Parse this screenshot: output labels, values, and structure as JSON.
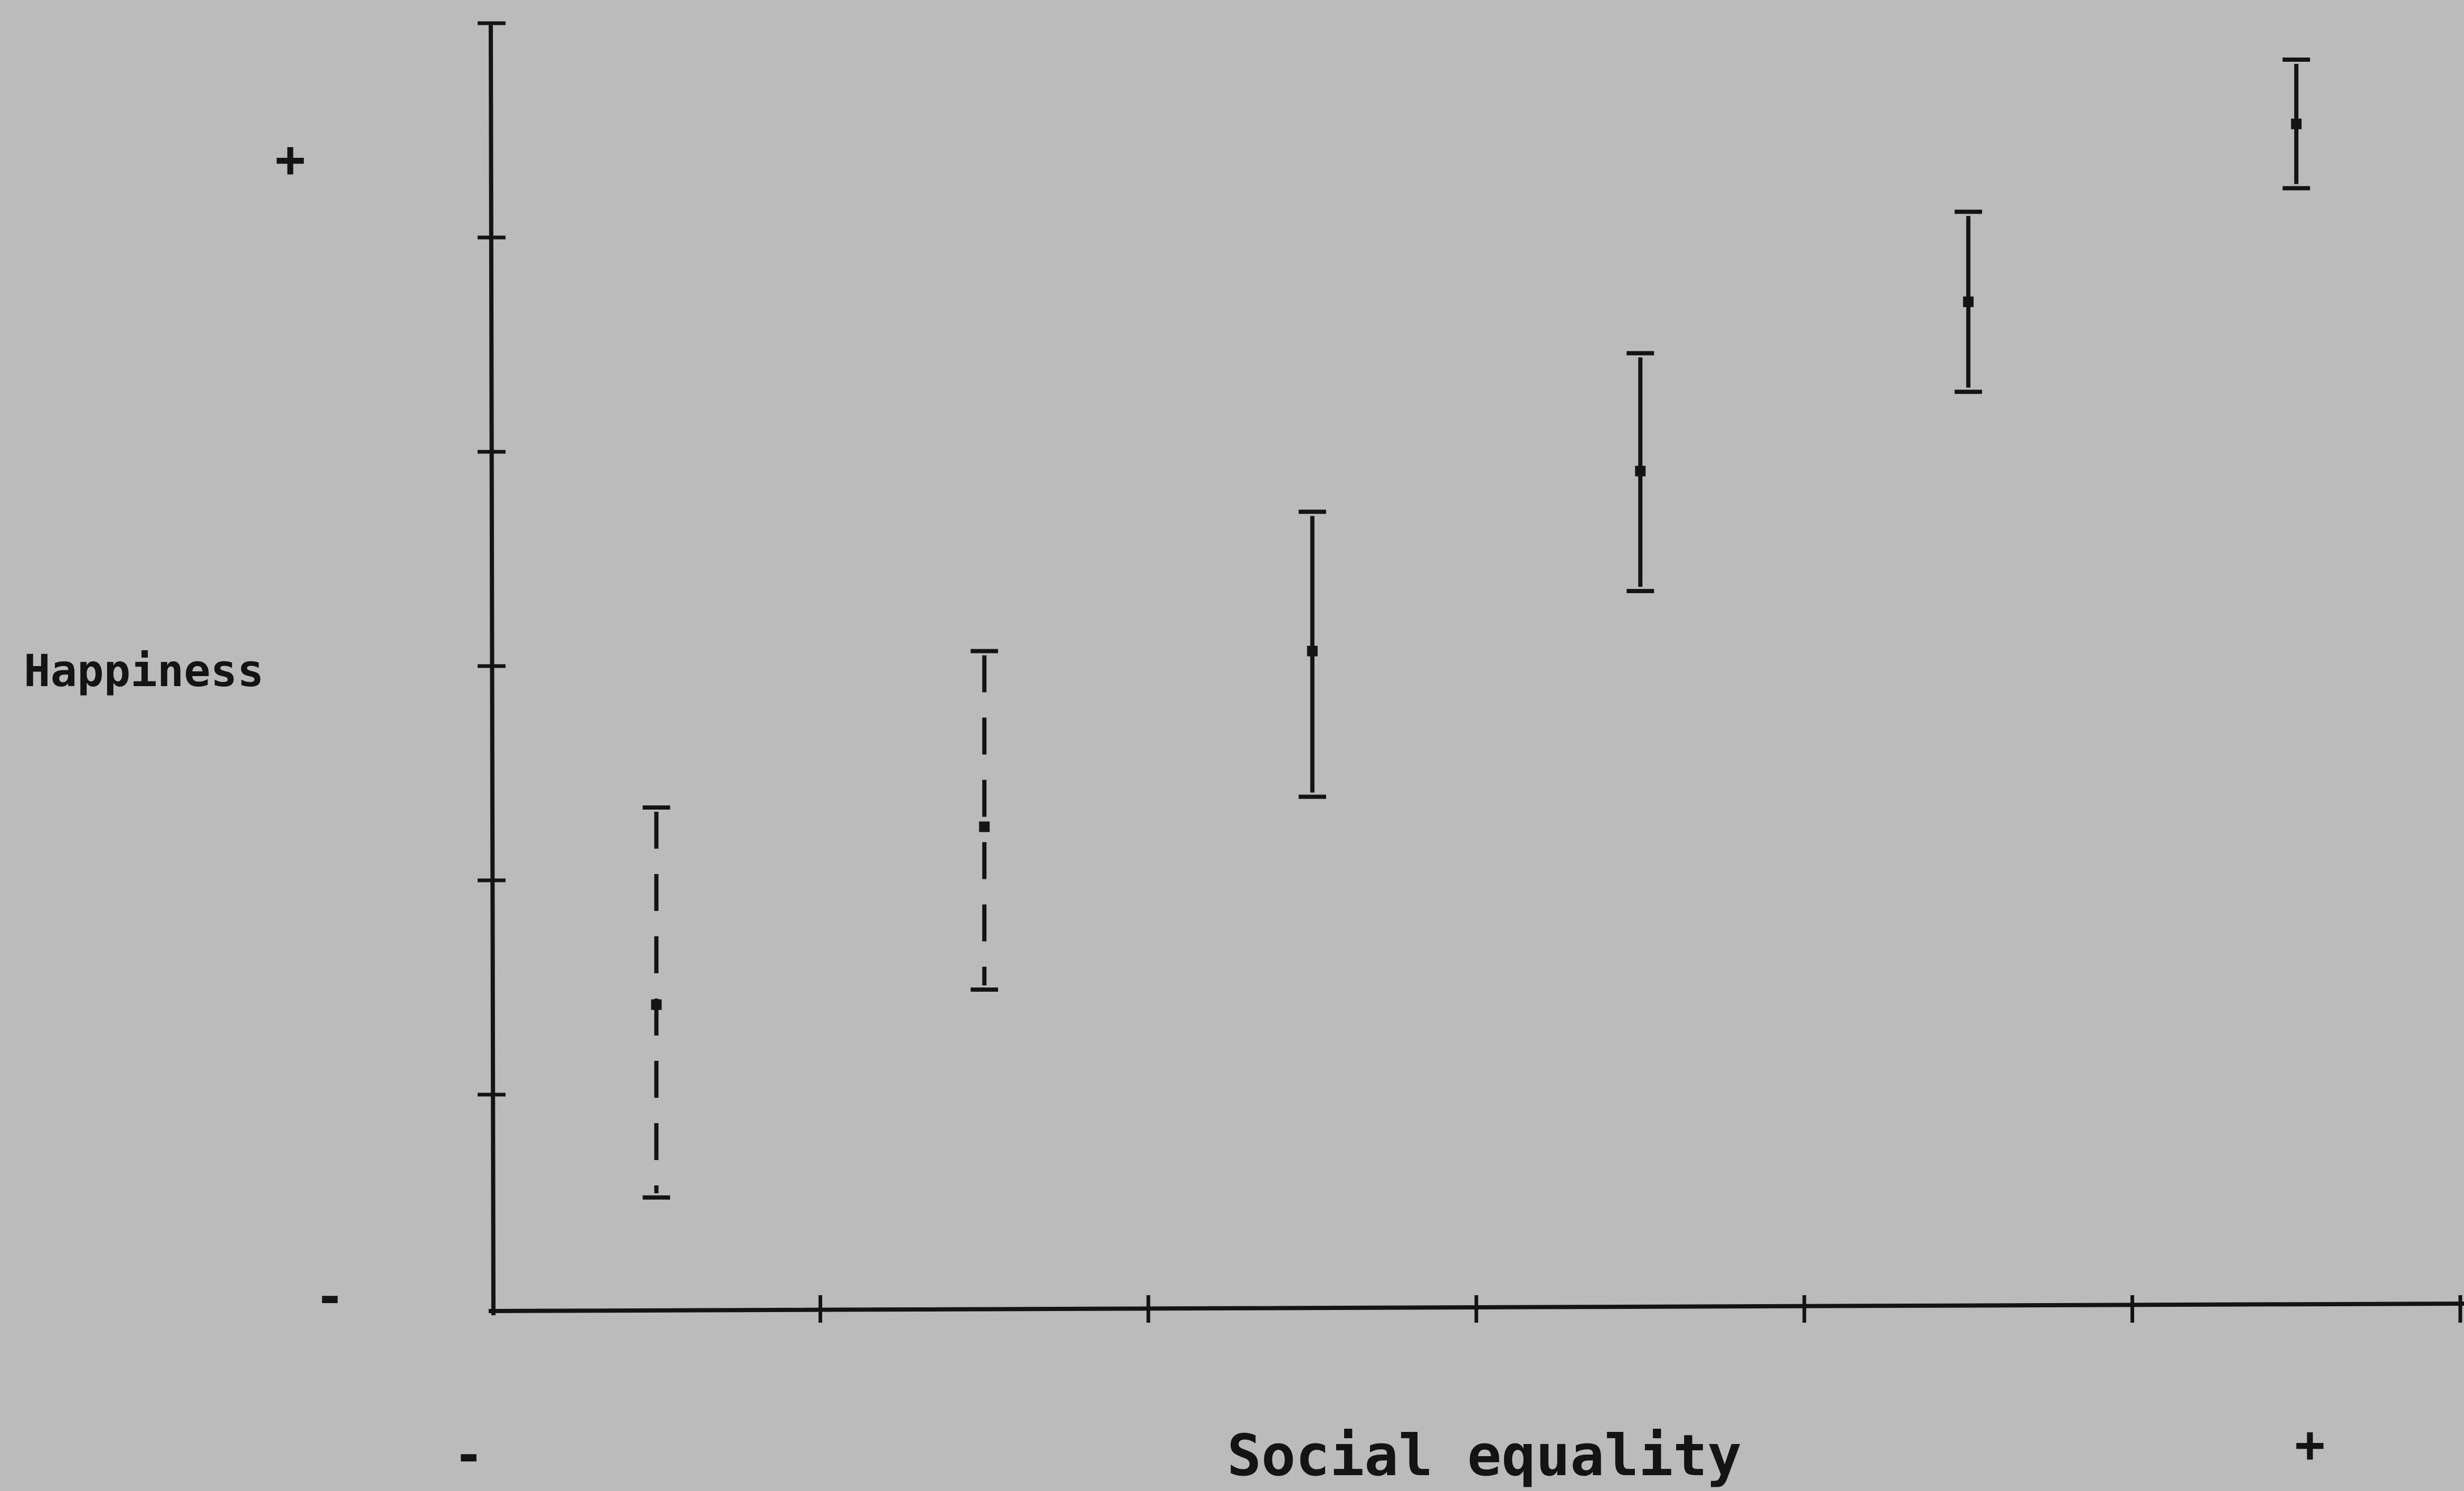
{
  "chart_data": {
    "type": "scatter",
    "title": "",
    "xlabel": "Social equality",
    "ylabel": "Happiness",
    "x_low_label": "-",
    "x_high_label": "+",
    "y_low_label": "-",
    "y_high_label": "+",
    "xlim": [
      0,
      6
    ],
    "ylim": [
      0,
      6
    ],
    "x_ticks": [
      1,
      2,
      3,
      4,
      5,
      6
    ],
    "y_ticks": [
      1,
      2,
      3,
      4,
      5,
      6
    ],
    "grid": false,
    "points": [
      {
        "x": 0.5,
        "y": 1.42,
        "low": 0.52,
        "high": 2.34,
        "line_style": "dashed"
      },
      {
        "x": 1.5,
        "y": 2.25,
        "low": 1.49,
        "high": 3.07,
        "line_style": "dashed"
      },
      {
        "x": 2.5,
        "y": 3.07,
        "low": 2.39,
        "high": 3.72,
        "line_style": "solid"
      },
      {
        "x": 3.5,
        "y": 3.91,
        "low": 3.35,
        "high": 4.46,
        "line_style": "solid"
      },
      {
        "x": 4.5,
        "y": 4.7,
        "low": 4.28,
        "high": 5.12,
        "line_style": "solid"
      },
      {
        "x": 5.5,
        "y": 5.53,
        "low": 5.23,
        "high": 5.83,
        "line_style": "solid"
      }
    ]
  }
}
